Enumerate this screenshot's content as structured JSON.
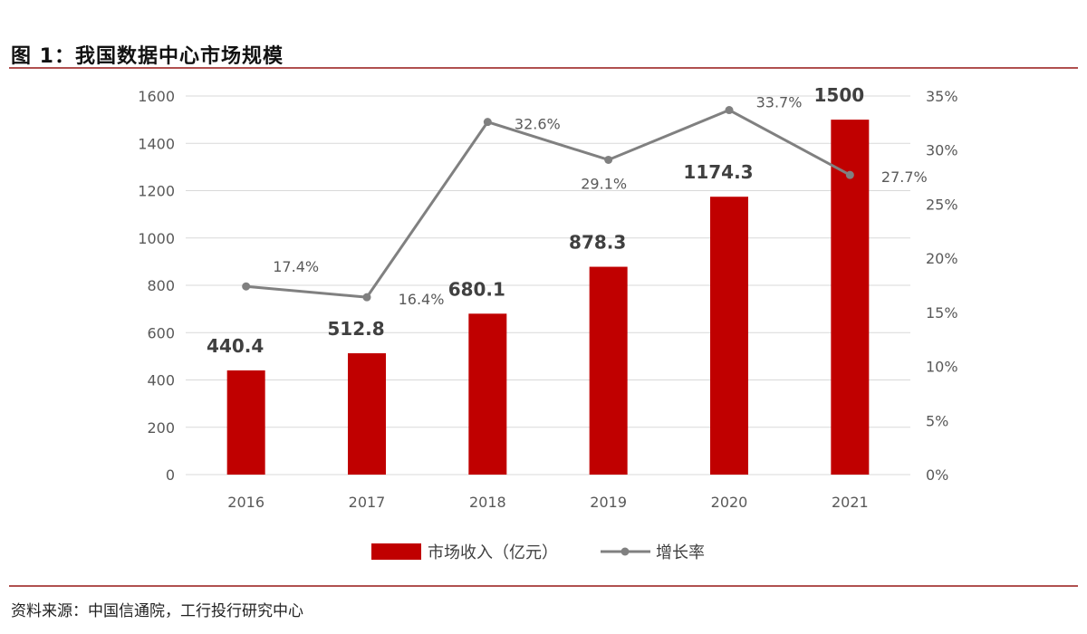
{
  "title": "图 1：我国数据中心市场规模",
  "source": "资料来源：中国信通院，工行投行研究中心",
  "colors": {
    "bar": "#c00000",
    "line": "#808080",
    "grid": "#d9d9d9",
    "rule": "#b0504f"
  },
  "chart_data": {
    "type": "bar",
    "categories": [
      "2016",
      "2017",
      "2018",
      "2019",
      "2020",
      "2021"
    ],
    "series": [
      {
        "name": "市场收入（亿元）",
        "type": "bar",
        "axis": "left",
        "values": [
          440.4,
          512.8,
          680.1,
          878.3,
          1174.3,
          1500
        ],
        "labels": [
          "440.4",
          "512.8",
          "680.1",
          "878.3",
          "1174.3",
          "1500"
        ]
      },
      {
        "name": "增长率",
        "type": "line",
        "axis": "right",
        "values": [
          17.4,
          16.4,
          32.6,
          29.1,
          33.7,
          27.7
        ],
        "labels": [
          "17.4%",
          "16.4%",
          "32.6%",
          "29.1%",
          "33.7%",
          "27.7%"
        ]
      }
    ],
    "y_left": {
      "ylim": [
        0,
        1600
      ],
      "ticks": [
        "0",
        "200",
        "400",
        "600",
        "800",
        "1000",
        "1200",
        "1400",
        "1600"
      ]
    },
    "y_right": {
      "ylim": [
        0,
        35
      ],
      "ticks": [
        "0%",
        "5%",
        "10%",
        "15%",
        "20%",
        "25%",
        "30%",
        "35%"
      ]
    },
    "grid": true,
    "legend": "bottom"
  }
}
